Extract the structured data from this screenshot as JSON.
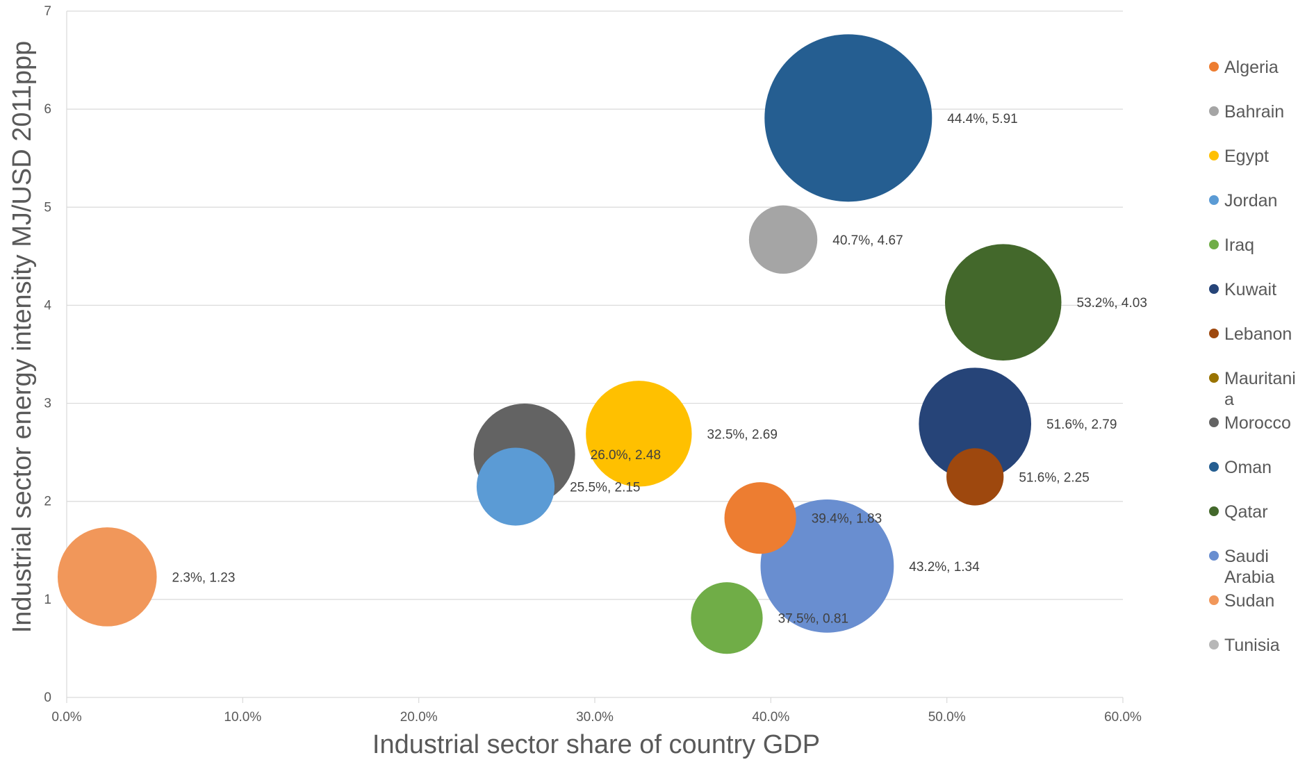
{
  "chart_data": {
    "type": "scatter",
    "xlabel": "Industrial sector share of country GDP",
    "ylabel": "Industrial sector energy intensity  MJ/USD 2011ppp",
    "xlim": [
      0,
      60
    ],
    "ylim": [
      0,
      7
    ],
    "x_ticks": [
      "0.0%",
      "10.0%",
      "20.0%",
      "30.0%",
      "40.0%",
      "50.0%",
      "60.0%"
    ],
    "y_ticks": [
      "0",
      "1",
      "2",
      "3",
      "4",
      "5",
      "6",
      "7"
    ],
    "grid": "horizontal",
    "legend_position": "right",
    "series": [
      {
        "name": "Algeria",
        "color": "#ED7D31",
        "x": 39.4,
        "y": 1.83,
        "size": 5.5,
        "label": "39.4%, 1.83"
      },
      {
        "name": "Bahrain",
        "color": "#A5A5A5",
        "x": 40.7,
        "y": 4.67,
        "size": 5.0,
        "label": "40.7%, 4.67"
      },
      {
        "name": "Egypt",
        "color": "#FFC000",
        "x": 32.5,
        "y": 2.69,
        "size": 12.0,
        "label": "32.5%, 2.69"
      },
      {
        "name": "Jordan",
        "color": "#5B9BD5",
        "x": 25.5,
        "y": 2.15,
        "size": 6.5,
        "label": "25.5%, 2.15"
      },
      {
        "name": "Iraq",
        "color": "#70AD47",
        "x": 37.5,
        "y": 0.81,
        "size": 5.5,
        "label": "37.5%, 0.81"
      },
      {
        "name": "Kuwait",
        "color": "#264478",
        "x": 51.6,
        "y": 2.79,
        "size": 13.5,
        "label": "51.6%, 2.79"
      },
      {
        "name": "Lebanon",
        "color": "#9E480E",
        "x": 51.6,
        "y": 2.25,
        "size": 3.5,
        "label": "51.6%, 2.25"
      },
      {
        "name": "Mauritania",
        "legend_lines": [
          "Mauritani",
          "a"
        ],
        "color": "#997300",
        "x": null,
        "y": null,
        "size": 0,
        "label": ""
      },
      {
        "name": "Morocco",
        "color": "#636363",
        "x": 26.0,
        "y": 2.48,
        "size": 11.0,
        "label": "26.0%, 2.48"
      },
      {
        "name": "Oman",
        "color": "#255E91",
        "x": 44.4,
        "y": 5.91,
        "size": 30.0,
        "label": "44.4%, 5.91"
      },
      {
        "name": "Qatar",
        "color": "#43682B",
        "x": 53.2,
        "y": 4.03,
        "size": 14.5,
        "label": "53.2%, 4.03"
      },
      {
        "name": "Saudi Arabia",
        "legend_lines": [
          "Saudi",
          "Arabia"
        ],
        "color": "#698ED0",
        "x": 43.2,
        "y": 1.34,
        "size": 19.0,
        "label": "43.2%, 1.34"
      },
      {
        "name": "Sudan",
        "color": "#F1975A",
        "x": 2.3,
        "y": 1.23,
        "size": 10.5,
        "label": "2.3%, 1.23"
      },
      {
        "name": "Tunisia",
        "color": "#B7B7B7",
        "x": null,
        "y": null,
        "size": 0,
        "label": ""
      }
    ]
  }
}
